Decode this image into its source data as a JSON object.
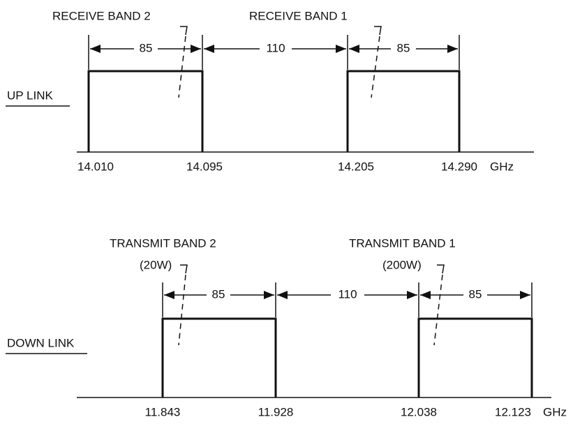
{
  "up_link": {
    "label": "UP LINK",
    "bands": [
      {
        "label": "RECEIVE BAND 2",
        "width": "85"
      },
      {
        "label": "RECEIVE BAND 1",
        "width": "85"
      }
    ],
    "gap": "110",
    "frequencies": [
      "14.010",
      "14.095",
      "14.205",
      "14.290"
    ]
  },
  "down_link": {
    "label": "DOWN LINK",
    "bands": [
      {
        "label": "TRANSMIT BAND 2",
        "power": "(20W)",
        "width": "85"
      },
      {
        "label": "TRANSMIT BAND 1",
        "power": "(200W)",
        "width": "85"
      }
    ],
    "gap": "110",
    "frequencies": [
      "11.843",
      "11.928",
      "12.038",
      "12.123"
    ]
  },
  "unit": "GHz"
}
